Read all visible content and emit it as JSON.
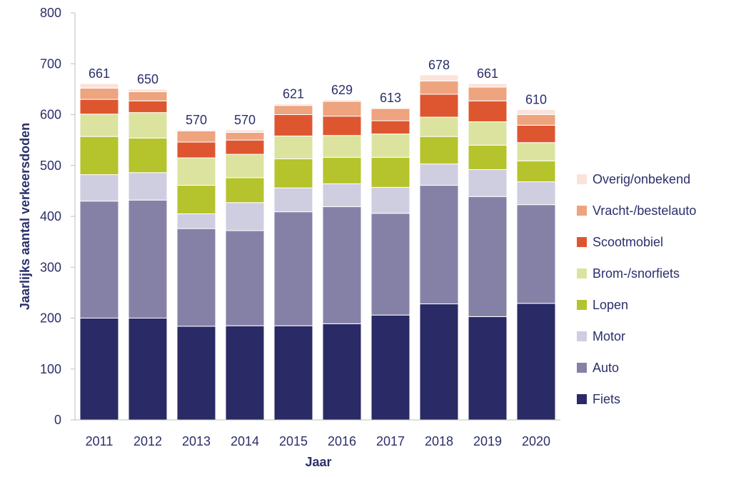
{
  "chart_data": {
    "type": "bar",
    "stacked": true,
    "xlabel": "Jaar",
    "ylabel": "Jaarlijks aantal verkeersdoden",
    "ylim": [
      0,
      800
    ],
    "yticks": [
      "0",
      "100",
      "200",
      "300",
      "400",
      "500",
      "600",
      "700",
      "800"
    ],
    "categories": [
      "2011",
      "2012",
      "2013",
      "2014",
      "2015",
      "2016",
      "2017",
      "2018",
      "2019",
      "2020"
    ],
    "totals": [
      661,
      650,
      570,
      570,
      621,
      629,
      613,
      678,
      661,
      610
    ],
    "grid": false,
    "legend_position": "right",
    "series": [
      {
        "name": "Fiets",
        "color": "#2a2a66",
        "values": [
          200,
          200,
          184,
          185,
          185,
          189,
          206,
          228,
          203,
          229
        ]
      },
      {
        "name": "Auto",
        "color": "#8581a6",
        "values": [
          230,
          232,
          192,
          187,
          224,
          230,
          200,
          233,
          236,
          194
        ]
      },
      {
        "name": "Motor",
        "color": "#cfcde0",
        "values": [
          52,
          54,
          29,
          55,
          47,
          45,
          51,
          42,
          53,
          45
        ]
      },
      {
        "name": "Lopen",
        "color": "#b5c32c",
        "values": [
          75,
          68,
          56,
          49,
          57,
          52,
          59,
          54,
          48,
          41
        ]
      },
      {
        "name": "Brom-/snorfiets",
        "color": "#dbe39f",
        "values": [
          44,
          50,
          54,
          46,
          45,
          43,
          46,
          38,
          46,
          36
        ]
      },
      {
        "name": "Scootmobiel",
        "color": "#de5630",
        "values": [
          29,
          23,
          31,
          28,
          42,
          38,
          26,
          45,
          41,
          34
        ]
      },
      {
        "name": "Vracht-/bestelauto",
        "color": "#eda47f",
        "values": [
          22,
          18,
          22,
          15,
          18,
          29,
          24,
          26,
          27,
          21
        ]
      },
      {
        "name": "Overig/onbekend",
        "color": "#fbe3db",
        "values": [
          9,
          5,
          2,
          5,
          3,
          3,
          1,
          12,
          7,
          10
        ]
      }
    ]
  }
}
